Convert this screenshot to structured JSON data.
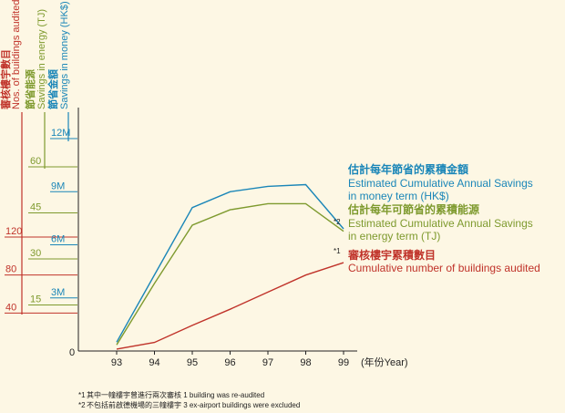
{
  "colors": {
    "buildings": "#c0332a",
    "energy": "#7e9a2e",
    "money": "#1a86b8",
    "axis": "#222222",
    "background": "#fdf7e4"
  },
  "axes": {
    "buildings": {
      "zh": "審核樓宇數目",
      "en": "Nos. of buildings audited",
      "ticks": [
        "40",
        "80",
        "120"
      ]
    },
    "energy": {
      "zh": "節省能源",
      "en": "Savings in energy (TJ)",
      "ticks": [
        "15",
        "30",
        "45",
        "60"
      ]
    },
    "money": {
      "zh": "節省金額",
      "en": "Savings in money (HK$)",
      "ticks": [
        "3M",
        "6M",
        "9M",
        "12M"
      ]
    },
    "zero": "0",
    "x_unit": "(年份Year)"
  },
  "series_labels": {
    "money": {
      "zh": "估計每年節省的累積金額",
      "en1": "Estimated Cumulative Annual Savings",
      "en2": "in money term (HK$)"
    },
    "energy": {
      "note": "*2",
      "zh": "估計每年可節省的累積能源",
      "en1": "Estimated Cumulative Annual Savings",
      "en2": "in energy term (TJ)"
    },
    "buildings": {
      "note": "*1",
      "zh": "審核樓宇累積數目",
      "en1": "Cumulative number of buildings audited"
    }
  },
  "footnotes": [
    {
      "mark": "*1",
      "text": "其中一幢樓宇曾進行兩次審核 1 building was re-audited"
    },
    {
      "mark": "*2",
      "text": "不包括前啟德機場的三幢樓宇 3 ex-airport buildings were excluded"
    }
  ],
  "chart_data": {
    "type": "line",
    "x": [
      "93",
      "94",
      "95",
      "96",
      "97",
      "98",
      "99"
    ],
    "series": [
      {
        "name": "Estimated Cumulative Annual Savings in money term (HK$)",
        "axis": "money",
        "unit": "HK$M",
        "values": [
          0.5,
          4.3,
          8.1,
          9.0,
          9.3,
          9.4,
          6.9
        ]
      },
      {
        "name": "Estimated Cumulative Annual Savings in energy term (TJ)",
        "axis": "energy",
        "unit": "TJ",
        "values": [
          2,
          22,
          41,
          46,
          48,
          48,
          39
        ]
      },
      {
        "name": "Cumulative number of buildings audited",
        "axis": "buildings",
        "unit": "buildings",
        "values": [
          2,
          9,
          27,
          44,
          62,
          80,
          93
        ]
      }
    ],
    "y_axes": {
      "money": {
        "label": "Savings in money (HK$)",
        "range": [
          0,
          12
        ],
        "ticks": [
          3,
          6,
          9,
          12
        ]
      },
      "energy": {
        "label": "Savings in energy (TJ)",
        "range": [
          0,
          60
        ],
        "ticks": [
          15,
          30,
          45,
          60
        ]
      },
      "buildings": {
        "label": "Nos. of buildings audited",
        "range": [
          0,
          120
        ],
        "ticks": [
          40,
          80,
          120
        ]
      }
    },
    "grid": false,
    "legend": "right, inline labels at line ends"
  }
}
